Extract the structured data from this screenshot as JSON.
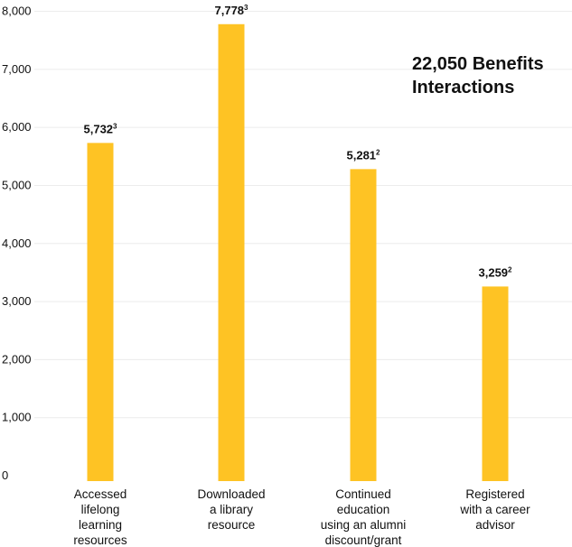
{
  "chart_data": {
    "type": "bar",
    "categories": [
      [
        "Accessed",
        "lifelong",
        "learning",
        "resources"
      ],
      [
        "Downloaded",
        "a library",
        "resource"
      ],
      [
        "Continued",
        "education",
        "using an alumni",
        "discount/grant"
      ],
      [
        "Registered",
        "with a career",
        "advisor"
      ]
    ],
    "values": [
      5732,
      7778,
      5281,
      3259
    ],
    "data_labels": [
      {
        "text": "5,732",
        "sup": "3"
      },
      {
        "text": "7,778",
        "sup": "3"
      },
      {
        "text": "5,281",
        "sup": "2"
      },
      {
        "text": "3,259",
        "sup": "2"
      }
    ],
    "yticks": [
      0,
      1000,
      2000,
      3000,
      4000,
      5000,
      6000,
      7000,
      8000
    ],
    "ytick_labels": [
      "0",
      "1,000",
      "2,000",
      "3,000",
      "4,000",
      "5,000",
      "6,000",
      "7,000",
      "8,000"
    ],
    "ylim": [
      0,
      8000
    ],
    "grid": true,
    "bar_color": "#FEC324",
    "annotation": [
      "22,050 Benefits",
      "Interactions"
    ]
  }
}
